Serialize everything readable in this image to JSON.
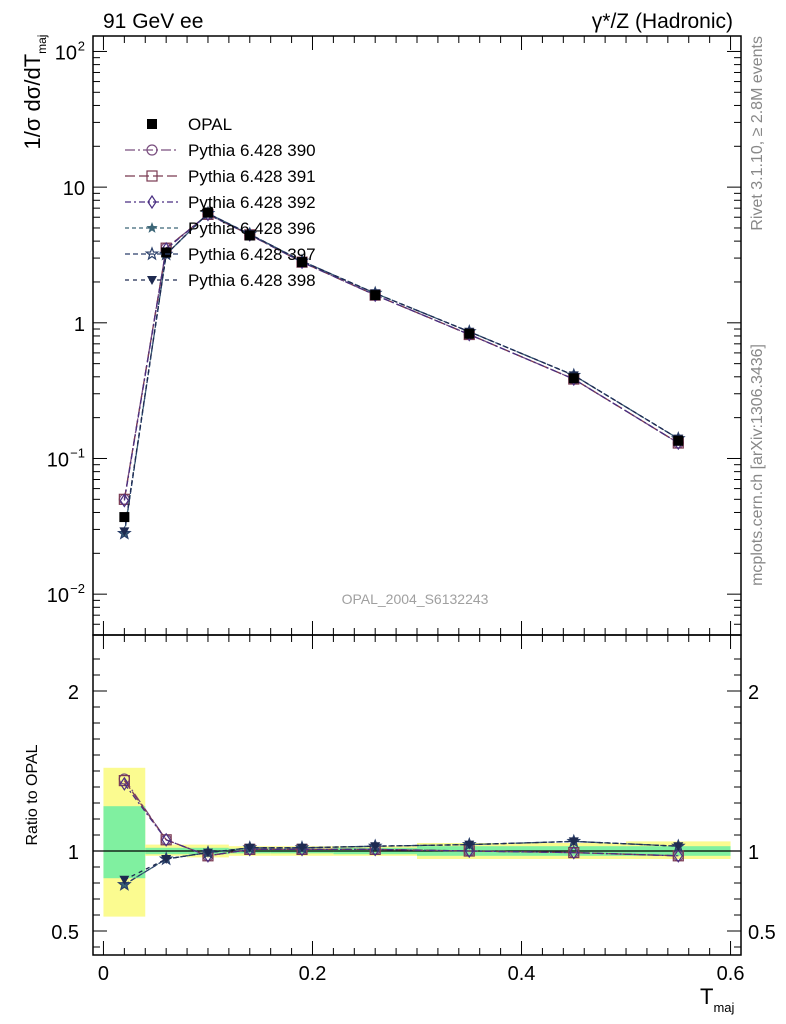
{
  "header": {
    "left": "91 GeV ee",
    "right": "γ*/Z (Hadronic)"
  },
  "side_labels": {
    "rivet": "Rivet 3.1.10, ≥ 2.8M events",
    "mcplots": "mcplots.cern.ch [arXiv:1306.3436]"
  },
  "analysis_id": "OPAL_2004_S6132243",
  "colors": {
    "data": "#000000",
    "p390": "#7a4f7f",
    "p391": "#7a3a52",
    "p392": "#4a2f82",
    "p396": "#3c6677",
    "p397": "#2a3f6a",
    "p398": "#1e2a50",
    "band_inner": "#80f0a0",
    "band_outer": "#fbfb90"
  },
  "chart_data": [
    {
      "type": "line",
      "panel": "main",
      "ylabel_main": "1/σ dσ/dT",
      "ylabel_sub": "maj",
      "log_y": true,
      "xlim": [
        -0.01,
        0.61
      ],
      "ylim": [
        0.005,
        130
      ],
      "y_ticks": [
        {
          "value": 0.01,
          "base": "10",
          "exp": "−2"
        },
        {
          "value": 0.1,
          "base": "10",
          "exp": "−1"
        },
        {
          "value": 1,
          "base": "1",
          "exp": ""
        },
        {
          "value": 10,
          "base": "10",
          "exp": ""
        },
        {
          "value": 100,
          "base": "10",
          "exp": "2"
        }
      ],
      "x": [
        0.02,
        0.06,
        0.1,
        0.14,
        0.19,
        0.26,
        0.35,
        0.45,
        0.55
      ],
      "series": [
        {
          "name": "OPAL",
          "key": "data",
          "marker": "filled-square",
          "dash": "",
          "values": [
            0.037,
            3.3,
            6.5,
            4.4,
            2.8,
            1.6,
            0.83,
            0.39,
            0.135
          ]
        },
        {
          "name": "Pythia 6.428 390",
          "key": "p390",
          "marker": "open-circle",
          "dash": "10,3,2,3",
          "values": [
            0.05,
            3.55,
            6.3,
            4.45,
            2.8,
            1.6,
            0.82,
            0.385,
            0.13
          ]
        },
        {
          "name": "Pythia 6.428 391",
          "key": "p391",
          "marker": "open-square",
          "dash": "10,4",
          "values": [
            0.05,
            3.55,
            6.3,
            4.45,
            2.8,
            1.6,
            0.82,
            0.385,
            0.13
          ]
        },
        {
          "name": "Pythia 6.428 392",
          "key": "p392",
          "marker": "open-diamond",
          "dash": "6,3,2,3",
          "values": [
            0.049,
            3.5,
            6.3,
            4.45,
            2.8,
            1.6,
            0.82,
            0.385,
            0.13
          ]
        },
        {
          "name": "Pythia 6.428 396",
          "key": "p396",
          "marker": "filled-star",
          "dash": "4,3",
          "values": [
            0.028,
            3.2,
            6.4,
            4.5,
            2.85,
            1.65,
            0.86,
            0.41,
            0.14
          ]
        },
        {
          "name": "Pythia 6.428 397",
          "key": "p397",
          "marker": "open-star",
          "dash": "5,3",
          "values": [
            0.028,
            3.2,
            6.4,
            4.5,
            2.85,
            1.65,
            0.86,
            0.41,
            0.14
          ]
        },
        {
          "name": "Pythia 6.428 398",
          "key": "p398",
          "marker": "filled-triangle-down",
          "dash": "4,4",
          "values": [
            0.029,
            3.2,
            6.4,
            4.5,
            2.85,
            1.65,
            0.86,
            0.41,
            0.14
          ]
        }
      ]
    },
    {
      "type": "line",
      "panel": "ratio",
      "ylabel": "Ratio to OPAL",
      "xlabel_main": "T",
      "xlabel_sub": "maj",
      "xlim": [
        -0.01,
        0.61
      ],
      "ylim": [
        0.35,
        2.35
      ],
      "y_ticks": [
        0.5,
        1,
        2
      ],
      "y_tick_labels": [
        "0.5",
        "1",
        "2"
      ],
      "x_ticks": [
        0,
        0.2,
        0.4,
        0.6
      ],
      "x_tick_labels": [
        "0",
        "0.2",
        "0.4",
        "0.6"
      ],
      "bins": [
        {
          "lo": 0.0,
          "hi": 0.04,
          "inner": [
            0.83,
            1.28
          ],
          "outer": [
            0.59,
            1.52
          ]
        },
        {
          "lo": 0.04,
          "hi": 0.08,
          "inner": [
            0.98,
            1.02
          ],
          "outer": [
            0.97,
            1.04
          ]
        },
        {
          "lo": 0.08,
          "hi": 0.12,
          "inner": [
            0.98,
            1.02
          ],
          "outer": [
            0.96,
            1.04
          ]
        },
        {
          "lo": 0.12,
          "hi": 0.16,
          "inner": [
            0.985,
            1.015
          ],
          "outer": [
            0.97,
            1.03
          ]
        },
        {
          "lo": 0.16,
          "hi": 0.22,
          "inner": [
            0.985,
            1.015
          ],
          "outer": [
            0.97,
            1.03
          ]
        },
        {
          "lo": 0.22,
          "hi": 0.3,
          "inner": [
            0.98,
            1.02
          ],
          "outer": [
            0.97,
            1.03
          ]
        },
        {
          "lo": 0.3,
          "hi": 0.4,
          "inner": [
            0.97,
            1.03
          ],
          "outer": [
            0.95,
            1.05
          ]
        },
        {
          "lo": 0.4,
          "hi": 0.5,
          "inner": [
            0.97,
            1.03
          ],
          "outer": [
            0.95,
            1.05
          ]
        },
        {
          "lo": 0.5,
          "hi": 0.6,
          "inner": [
            0.97,
            1.03
          ],
          "outer": [
            0.95,
            1.06
          ]
        }
      ],
      "x": [
        0.02,
        0.06,
        0.1,
        0.14,
        0.19,
        0.26,
        0.35,
        0.45,
        0.55
      ],
      "series": [
        {
          "key": "p390",
          "marker": "open-circle",
          "dash": "10,3,2,3",
          "values": [
            1.45,
            1.07,
            0.97,
            1.01,
            1.01,
            1.01,
            1.0,
            0.99,
            0.97
          ]
        },
        {
          "key": "p391",
          "marker": "open-square",
          "dash": "10,4",
          "values": [
            1.44,
            1.07,
            0.97,
            1.01,
            1.01,
            1.01,
            1.0,
            0.99,
            0.97
          ]
        },
        {
          "key": "p392",
          "marker": "open-diamond",
          "dash": "6,3,2,3",
          "values": [
            1.42,
            1.07,
            0.97,
            1.01,
            1.01,
            1.01,
            1.0,
            0.99,
            0.97
          ]
        },
        {
          "key": "p396",
          "marker": "filled-star",
          "dash": "4,3",
          "values": [
            0.79,
            0.95,
            0.99,
            1.02,
            1.02,
            1.03,
            1.04,
            1.06,
            1.03
          ]
        },
        {
          "key": "p397",
          "marker": "open-star",
          "dash": "5,3",
          "values": [
            0.79,
            0.95,
            0.99,
            1.02,
            1.02,
            1.03,
            1.04,
            1.06,
            1.03
          ]
        },
        {
          "key": "p398",
          "marker": "filled-triangle-down",
          "dash": "4,4",
          "values": [
            0.82,
            0.95,
            0.99,
            1.02,
            1.02,
            1.03,
            1.04,
            1.06,
            1.03
          ]
        }
      ]
    }
  ]
}
